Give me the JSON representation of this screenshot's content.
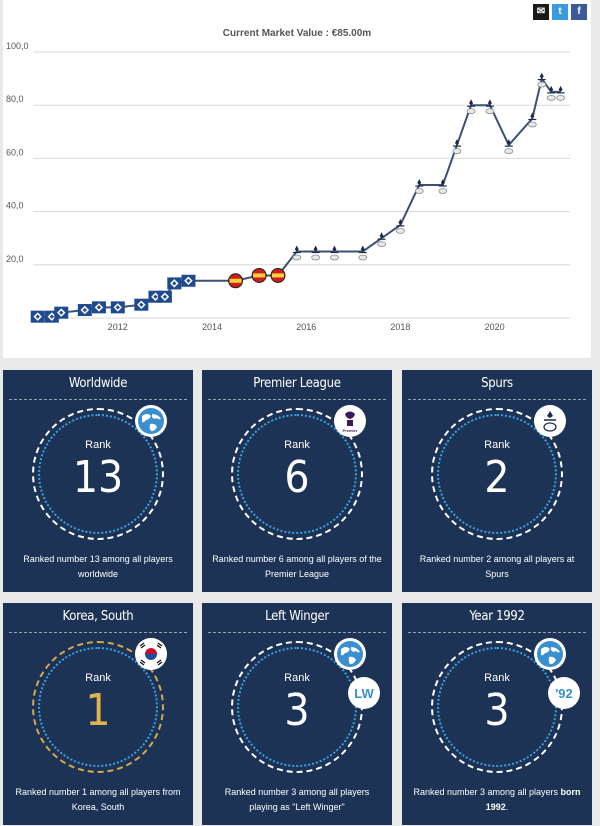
{
  "chart_data": {
    "type": "line",
    "title": "Current Market Value : €85.00m",
    "ylim": [
      0,
      100
    ],
    "yticks": [
      "100,0",
      "80,0",
      "60,0",
      "40,0",
      "20,0"
    ],
    "ytick_values": [
      100,
      80,
      60,
      40,
      20
    ],
    "xlim": [
      2010.2,
      2021.6
    ],
    "xticks": [
      "2012",
      "2014",
      "2016",
      "2018",
      "2020"
    ],
    "xtick_values": [
      2012,
      2014,
      2016,
      2018,
      2020
    ],
    "grid": true,
    "legend": "none",
    "series": [
      {
        "x": [
          2010.3,
          2010.6,
          2010.8,
          2011.3,
          2011.6,
          2012.0,
          2012.5,
          2012.8,
          2013.0,
          2013.2,
          2013.5,
          2014.5,
          2015.0,
          2015.4,
          2015.8,
          2016.2,
          2016.6,
          2017.2,
          2017.6,
          2018.0,
          2018.4,
          2018.9,
          2019.2,
          2019.5,
          2019.9,
          2020.3,
          2020.8,
          2021.0,
          2021.2,
          2021.4
        ],
        "y": [
          0.5,
          0.5,
          2,
          3,
          4,
          4,
          5,
          8,
          8,
          13,
          14,
          14,
          16,
          16,
          25,
          25,
          25,
          25,
          30,
          35,
          50,
          50,
          65,
          80,
          80,
          65,
          75,
          90,
          85,
          85
        ],
        "club": [
          "hsv",
          "hsv",
          "hsv",
          "hsv",
          "hsv",
          "hsv",
          "hsv",
          "hsv",
          "hsv",
          "hsv",
          "hsv",
          "b04",
          "b04",
          "b04",
          "spurs",
          "spurs",
          "spurs",
          "spurs",
          "spurs",
          "spurs",
          "spurs",
          "spurs",
          "spurs",
          "spurs",
          "spurs",
          "spurs",
          "spurs",
          "spurs",
          "spurs",
          "spurs"
        ]
      }
    ]
  },
  "share": {
    "mail": "✉",
    "twitter": "t",
    "facebook": "f"
  },
  "ranks": [
    {
      "title": "Worldwide",
      "rank_label": "Rank",
      "rank": "13",
      "badge": "globe-icon",
      "desc": "Ranked number 13 among all players worldwide",
      "gold": false
    },
    {
      "title": "Premier League",
      "rank_label": "Rank",
      "rank": "6",
      "badge": "premier-league-logo",
      "desc": "Ranked number 6 among all players of the Premier League",
      "gold": false
    },
    {
      "title": "Spurs",
      "rank_label": "Rank",
      "rank": "2",
      "badge": "spurs-crest",
      "desc": "Ranked number 2 among all players at Spurs",
      "gold": false
    },
    {
      "title": "Korea, South",
      "rank_label": "Rank",
      "rank": "1",
      "badge": "korea-flag",
      "desc": "Ranked number 1 among all players from Korea, South",
      "gold": true
    },
    {
      "title": "Left Winger",
      "rank_label": "Rank",
      "rank": "3",
      "badge": "globe-icon",
      "badge_text": "LW",
      "desc": "Ranked number 3 among all players playing as \"Left Winger\"",
      "gold": false
    },
    {
      "title": "Year 1992",
      "rank_label": "Rank",
      "rank": "3",
      "badge": "globe-icon",
      "badge_text": "'92",
      "desc_pre": "Ranked number 3 among all players ",
      "desc_bold": "born 1992",
      "desc_post": ".",
      "gold": false
    }
  ],
  "colors": {
    "navy": "#1d3355",
    "line": "#3a5075",
    "gold": "#e2b24f",
    "dot_blue": "#39a2e0"
  }
}
